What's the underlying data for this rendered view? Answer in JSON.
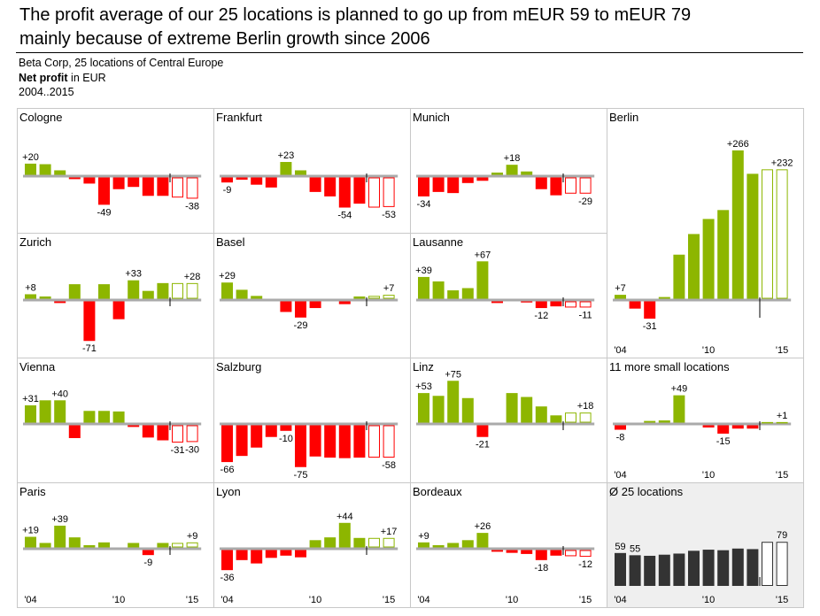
{
  "header": {
    "title_line1": "The profit average of our 25 locations is planned to go up from mEUR 59 to mEUR 79",
    "title_line2": "mainly because of extreme Berlin growth since 2006",
    "company": "Beta Corp, 25 locations of Central Europe",
    "measure_bold": "Net profit",
    "measure_rest": " in EUR",
    "period": "2004..2015"
  },
  "colors": {
    "positive": "#8db600",
    "negative": "#ff0000",
    "average": "#333333",
    "axis": "#aaaaaa",
    "panel_bg_avg": "#efefef"
  },
  "chart_data": {
    "type": "bar",
    "title": "The profit average of our 25 locations is planned to go up from mEUR 59 to mEUR 79 mainly because of extreme Berlin growth since 2006",
    "years": [
      2004,
      2005,
      2006,
      2007,
      2008,
      2009,
      2010,
      2011,
      2012,
      2013,
      2014,
      2015
    ],
    "actual_years": "2004..2013",
    "plan_years": "2014..2015",
    "x_tick_labels": [
      "'04",
      "'10",
      "'15"
    ],
    "panels": [
      {
        "name": "Cologne",
        "values": [
          20,
          19,
          8,
          -3,
          -11,
          -49,
          -21,
          -17,
          -33,
          -33,
          -36,
          -38
        ],
        "labels": [
          {
            "i": 0,
            "text": "+20"
          },
          {
            "i": 5,
            "text": "-49"
          },
          {
            "i": 11,
            "text": "-38"
          }
        ]
      },
      {
        "name": "Frankfurt",
        "values": [
          -9,
          -4,
          -13,
          -18,
          23,
          8,
          -26,
          -34,
          -54,
          -47,
          -54,
          -53
        ],
        "labels": [
          {
            "i": 0,
            "text": "-9"
          },
          {
            "i": 4,
            "text": "+23"
          },
          {
            "i": 8,
            "text": "-54"
          },
          {
            "i": 11,
            "text": "-53"
          }
        ]
      },
      {
        "name": "Munich",
        "values": [
          -34,
          -26,
          -28,
          -10,
          -6,
          4,
          18,
          6,
          -21,
          -32,
          -29,
          -29
        ],
        "labels": [
          {
            "i": 0,
            "text": "-34"
          },
          {
            "i": 6,
            "text": "+18"
          },
          {
            "i": 11,
            "text": "-29"
          }
        ]
      },
      {
        "name": "Berlin",
        "values": [
          7,
          -13,
          -31,
          3,
          79,
          116,
          143,
          159,
          266,
          224,
          232,
          232
        ],
        "labels": [
          {
            "i": 0,
            "text": "+7"
          },
          {
            "i": 2,
            "text": "-31"
          },
          {
            "i": 8,
            "text": "+266"
          },
          {
            "i": 11,
            "text": "+232"
          }
        ],
        "ticks": true
      },
      {
        "name": "Zurich",
        "values": [
          8,
          4,
          -3,
          26,
          -71,
          26,
          -32,
          33,
          14,
          28,
          28,
          28
        ],
        "labels": [
          {
            "i": 0,
            "text": "+8"
          },
          {
            "i": 4,
            "text": "-71"
          },
          {
            "i": 7,
            "text": "+33"
          },
          {
            "i": 11,
            "text": "+28"
          }
        ]
      },
      {
        "name": "Basel",
        "values": [
          29,
          16,
          5,
          0,
          -19,
          -29,
          -12,
          0,
          -5,
          4,
          5,
          7
        ],
        "labels": [
          {
            "i": 0,
            "text": "+29"
          },
          {
            "i": 5,
            "text": "-29"
          },
          {
            "i": 11,
            "text": "+7"
          }
        ]
      },
      {
        "name": "Lausanne",
        "values": [
          39,
          31,
          15,
          19,
          67,
          -3,
          0,
          -2,
          -12,
          -9,
          -11,
          -11
        ],
        "labels": [
          {
            "i": 0,
            "text": "+39"
          },
          {
            "i": 4,
            "text": "+67"
          },
          {
            "i": 8,
            "text": "-12"
          },
          {
            "i": 11,
            "text": "-11"
          }
        ]
      },
      {
        "name": "Vienna",
        "values": [
          31,
          40,
          40,
          -23,
          21,
          21,
          20,
          -3,
          -22,
          -27,
          -31,
          -30
        ],
        "labels": [
          {
            "i": 0,
            "text": "+31"
          },
          {
            "i": 2,
            "text": "+40"
          },
          {
            "i": 10,
            "text": "-31"
          },
          {
            "i": 11,
            "text": "-30"
          }
        ]
      },
      {
        "name": "Salzburg",
        "values": [
          -66,
          -55,
          -40,
          -21,
          -10,
          -75,
          -56,
          -58,
          -59,
          -58,
          -58,
          -58
        ],
        "labels": [
          {
            "i": 0,
            "text": "-66"
          },
          {
            "i": 4,
            "text": "-10"
          },
          {
            "i": 5,
            "text": "-75"
          },
          {
            "i": 11,
            "text": "-58"
          }
        ]
      },
      {
        "name": "Linz",
        "values": [
          53,
          48,
          75,
          44,
          -21,
          0,
          53,
          46,
          29,
          13,
          18,
          18
        ],
        "labels": [
          {
            "i": 0,
            "text": "+53"
          },
          {
            "i": 2,
            "text": "+75"
          },
          {
            "i": 4,
            "text": "-21"
          },
          {
            "i": 11,
            "text": "+18"
          }
        ]
      },
      {
        "name": "11 more small locations",
        "values": [
          -8,
          0,
          3,
          4,
          49,
          0,
          -4,
          -15,
          -6,
          -6,
          1,
          1
        ],
        "labels": [
          {
            "i": 0,
            "text": "-8"
          },
          {
            "i": 4,
            "text": "+49"
          },
          {
            "i": 7,
            "text": "-15"
          },
          {
            "i": 11,
            "text": "+1"
          }
        ],
        "ticks": true
      },
      {
        "name": "Paris",
        "values": [
          19,
          8,
          39,
          18,
          4,
          9,
          0,
          8,
          -9,
          8,
          8,
          9
        ],
        "labels": [
          {
            "i": 0,
            "text": "+19"
          },
          {
            "i": 2,
            "text": "+39"
          },
          {
            "i": 8,
            "text": "-9"
          },
          {
            "i": 11,
            "text": "+9"
          }
        ],
        "ticks": true
      },
      {
        "name": "Lyon",
        "values": [
          -36,
          -18,
          -24,
          -14,
          -10,
          -13,
          13,
          18,
          44,
          17,
          17,
          17
        ],
        "labels": [
          {
            "i": 0,
            "text": "-36"
          },
          {
            "i": 8,
            "text": "+44"
          },
          {
            "i": 11,
            "text": "+17"
          }
        ],
        "ticks": true
      },
      {
        "name": "Bordeaux",
        "values": [
          9,
          4,
          8,
          13,
          26,
          -3,
          -5,
          -7,
          -18,
          -10,
          -11,
          -12
        ],
        "labels": [
          {
            "i": 0,
            "text": "+9"
          },
          {
            "i": 4,
            "text": "+26"
          },
          {
            "i": 8,
            "text": "-18"
          },
          {
            "i": 11,
            "text": "-12"
          }
        ],
        "ticks": true
      },
      {
        "name": "Ø 25 locations",
        "values": [
          59,
          55,
          54,
          56,
          58,
          63,
          65,
          64,
          67,
          66,
          79,
          79
        ],
        "labels": [
          {
            "i": 0,
            "text": "59"
          },
          {
            "i": 1,
            "text": "55"
          },
          {
            "i": 11,
            "text": "79"
          }
        ],
        "ticks": true,
        "average": true
      }
    ]
  }
}
